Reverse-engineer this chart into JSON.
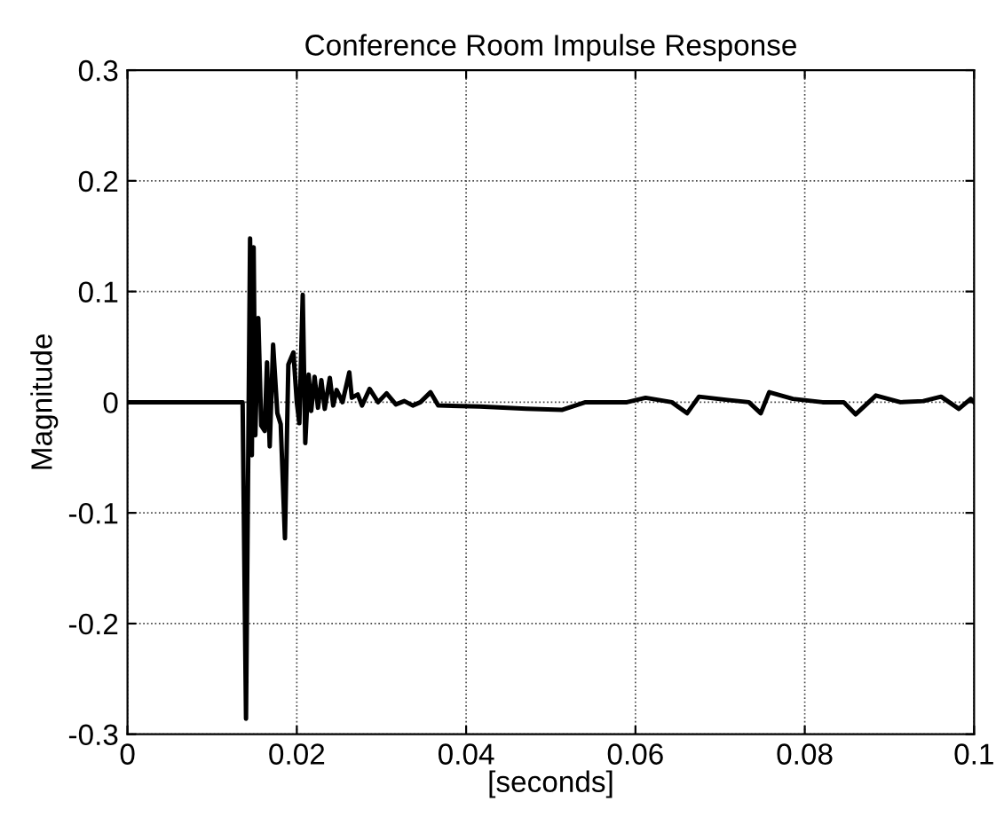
{
  "chart_data": {
    "type": "line",
    "title": "Conference Room Impulse Response",
    "xlabel": "[seconds]",
    "ylabel": "Magnitude",
    "xlim": [
      0,
      0.1
    ],
    "ylim": [
      -0.3,
      0.3
    ],
    "xticks": [
      0,
      0.02,
      0.04,
      0.06,
      0.08,
      0.1
    ],
    "yticks": [
      -0.3,
      -0.2,
      -0.1,
      0,
      0.1,
      0.2,
      0.3
    ],
    "grid": true,
    "line_style": "solid",
    "series": [
      {
        "color": "#000000",
        "x": [
          0,
          0.0136,
          0.014,
          0.01448,
          0.01469,
          0.0149,
          0.0151,
          0.01545,
          0.0158,
          0.0162,
          0.01648,
          0.0168,
          0.0172,
          0.0177,
          0.0181,
          0.0186,
          0.019,
          0.0196,
          0.02,
          0.0203,
          0.0207,
          0.021,
          0.0214,
          0.0217,
          0.0221,
          0.0225,
          0.0229,
          0.0233,
          0.0239,
          0.0243,
          0.0247,
          0.0254,
          0.0262,
          0.0265,
          0.0272,
          0.0277,
          0.0286,
          0.0296,
          0.0306,
          0.0317,
          0.0327,
          0.0337,
          0.0346,
          0.0358,
          0.0367,
          0.0416,
          0.0471,
          0.0513,
          0.0541,
          0.059,
          0.0612,
          0.0643,
          0.0661,
          0.0675,
          0.0709,
          0.0734,
          0.0748,
          0.0758,
          0.0786,
          0.0821,
          0.0846,
          0.086,
          0.0884,
          0.0913,
          0.094,
          0.0961,
          0.0982,
          0.0996,
          0.1
        ],
        "values": [
          0,
          0,
          -0.286,
          0.148,
          -0.048,
          0.14,
          -0.03,
          0.076,
          -0.021,
          -0.026,
          0.036,
          -0.04,
          0.052,
          -0.01,
          -0.02,
          -0.123,
          0.034,
          0.045,
          0,
          -0.019,
          0.097,
          -0.037,
          0.025,
          -0.008,
          0.023,
          -0.005,
          0.02,
          -0.006,
          0.022,
          -0.003,
          0.011,
          0,
          0.027,
          0.004,
          0.007,
          -0.003,
          0.012,
          0,
          0.008,
          -0.002,
          0.001,
          -0.003,
          0,
          0.009,
          -0.003,
          -0.004,
          -0.006,
          -0.007,
          0,
          0,
          0.004,
          0,
          -0.01,
          0.005,
          0.002,
          0,
          -0.01,
          0.009,
          0.003,
          0,
          0,
          -0.011,
          0.006,
          0,
          0.001,
          0.005,
          -0.006,
          0.003,
          0
        ]
      }
    ]
  }
}
